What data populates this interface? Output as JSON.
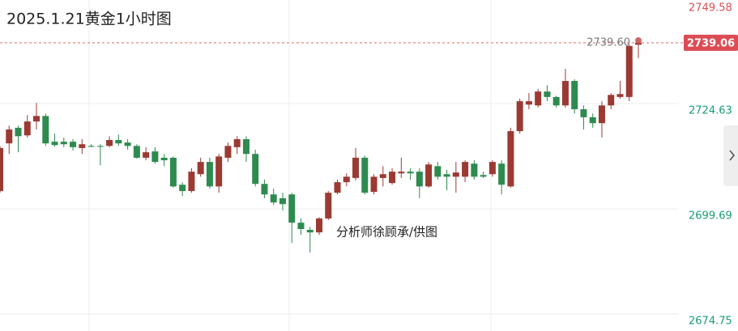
{
  "chart_data": {
    "type": "candlestick",
    "title": "2025.1.21黄金1小时图",
    "annotation": "分析师徐顾承/供图",
    "up_color": "#9b3a33",
    "down_color": "#2e8b4f",
    "grid": true,
    "ylim": [
      2674.75,
      2749.58
    ],
    "yticks": [
      2674.75,
      2699.69,
      2724.63,
      2749.58
    ],
    "last_price": 2739.06,
    "marked_high": {
      "value": 2739.6,
      "label": "2739.60"
    },
    "open": [
      2703.9,
      2715.2,
      2718.9,
      2717.1,
      2720.4,
      2721.7,
      2715.6,
      2715.6,
      2715.6,
      2714.1,
      2714.6,
      2714.6,
      2714.6,
      2716.0,
      2715.4,
      2714.6,
      2711.8,
      2713.3,
      2711.8,
      2711.8,
      2705.4,
      2703.9,
      2707.9,
      2710.8,
      2705.0,
      2711.8,
      2714.3,
      2716.2,
      2712.7,
      2705.6,
      2703.1,
      2702.2,
      2703.1,
      2696.4,
      2694.7,
      2694.1,
      2697.4,
      2703.5,
      2706.0,
      2707.0,
      2711.8,
      2703.7,
      2707.0,
      2705.8,
      2708.1,
      2708.5,
      2708.5,
      2705.0,
      2709.8,
      2707.9,
      2707.3,
      2707.3,
      2710.4,
      2707.7,
      2707.9,
      2710.4,
      2705.0,
      2718.1,
      2724.4,
      2724.2,
      2727.5,
      2726.2,
      2724.2,
      2730.0,
      2723.3,
      2721.4,
      2720.0,
      2724.2,
      2726.2,
      2726.2,
      2738.6
    ],
    "high": [
      2714.6,
      2719.4,
      2719.4,
      2721.9,
      2724.8,
      2722.3,
      2717.5,
      2716.6,
      2716.2,
      2716.2,
      2715.0,
      2715.0,
      2716.9,
      2717.3,
      2716.2,
      2715.0,
      2714.3,
      2714.3,
      2712.7,
      2712.1,
      2706.0,
      2709.3,
      2711.8,
      2711.8,
      2712.7,
      2715.4,
      2716.9,
      2716.9,
      2713.7,
      2706.6,
      2704.5,
      2703.5,
      2703.5,
      2697.4,
      2695.4,
      2697.7,
      2703.9,
      2706.6,
      2708.1,
      2714.1,
      2712.3,
      2707.9,
      2709.8,
      2709.3,
      2711.8,
      2709.3,
      2709.3,
      2710.8,
      2710.8,
      2708.9,
      2710.8,
      2711.2,
      2711.2,
      2708.5,
      2711.2,
      2711.2,
      2718.9,
      2725.8,
      2727.1,
      2728.1,
      2729.0,
      2726.5,
      2732.9,
      2730.4,
      2724.2,
      2722.3,
      2725.2,
      2727.1,
      2730.0,
      2738.6,
      2739.6
    ],
    "low": [
      2703.5,
      2712.7,
      2713.1,
      2716.6,
      2718.5,
      2714.6,
      2714.4,
      2714.3,
      2713.5,
      2712.7,
      2714.3,
      2710.0,
      2714.3,
      2714.6,
      2713.7,
      2711.6,
      2711.2,
      2710.4,
      2709.8,
      2704.7,
      2702.7,
      2703.5,
      2707.3,
      2704.5,
      2703.5,
      2710.8,
      2712.7,
      2710.8,
      2705.0,
      2702.2,
      2700.6,
      2699.3,
      2691.6,
      2693.5,
      2689.3,
      2693.5,
      2697.0,
      2703.1,
      2705.0,
      2706.4,
      2703.1,
      2703.1,
      2705.0,
      2705.4,
      2707.0,
      2706.6,
      2702.2,
      2704.7,
      2706.6,
      2704.1,
      2703.5,
      2706.0,
      2706.6,
      2707.0,
      2707.3,
      2703.1,
      2704.7,
      2717.5,
      2723.3,
      2723.7,
      2725.2,
      2723.7,
      2723.7,
      2722.3,
      2718.5,
      2718.9,
      2716.6,
      2723.3,
      2725.8,
      2725.2,
      2735.4
    ],
    "close": [
      2714.1,
      2718.5,
      2716.9,
      2720.4,
      2721.7,
      2715.2,
      2714.8,
      2715.0,
      2714.3,
      2715.0,
      2714.4,
      2714.4,
      2716.0,
      2715.2,
      2714.6,
      2711.8,
      2713.1,
      2710.8,
      2711.2,
      2705.0,
      2703.9,
      2708.5,
      2710.8,
      2705.0,
      2712.1,
      2714.6,
      2716.2,
      2712.7,
      2705.6,
      2703.1,
      2701.2,
      2700.8,
      2696.4,
      2694.9,
      2694.1,
      2697.4,
      2703.5,
      2706.0,
      2707.3,
      2711.8,
      2703.5,
      2707.3,
      2707.9,
      2708.5,
      2708.5,
      2708.1,
      2705.0,
      2710.2,
      2707.3,
      2707.3,
      2708.3,
      2710.8,
      2707.3,
      2707.3,
      2710.8,
      2705.4,
      2718.1,
      2725.2,
      2725.2,
      2727.5,
      2726.2,
      2724.2,
      2730.0,
      2723.3,
      2721.4,
      2720.0,
      2724.2,
      2726.7,
      2726.9,
      2738.3,
      2739.06
    ]
  }
}
